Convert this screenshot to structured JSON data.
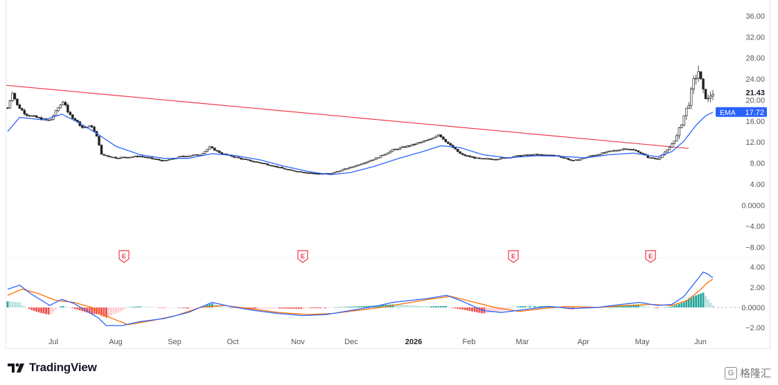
{
  "chart_data": {
    "type": "candlestick",
    "title": "",
    "price_axis": {
      "range": [
        -8,
        36
      ],
      "ticks": [
        "36.00",
        "32.00",
        "28.00",
        "24.00",
        "20.00",
        "16.00",
        "12.00",
        "8.00",
        "4.00",
        "0.0000",
        "−4.00",
        "−8.00"
      ],
      "last_price": "21.43",
      "ema_label": "EMA",
      "ema_value": "17.72"
    },
    "macd_axis": {
      "range": [
        -2.6,
        4.6
      ],
      "ticks": [
        "4.00",
        "2.00",
        "0.0000",
        "−2.00"
      ]
    },
    "x_axis": {
      "labels": [
        "Jul",
        "Aug",
        "Sep",
        "Oct",
        "Nov",
        "Dec",
        "2026",
        "Feb",
        "Mar",
        "Apr",
        "May",
        "Jun"
      ],
      "bold_labels": [
        "2026"
      ]
    },
    "earnings_markers": [
      "E",
      "E",
      "E",
      "E"
    ],
    "trendline": {
      "start_price": 22.8,
      "end_price": 10.8
    },
    "price_anchors": [
      [
        0,
        18.5
      ],
      [
        4,
        21.5
      ],
      [
        8,
        19.0
      ],
      [
        15,
        17.3
      ],
      [
        25,
        16.6
      ],
      [
        35,
        16.0
      ],
      [
        42,
        18.5
      ],
      [
        47,
        20.0
      ],
      [
        50,
        17.5
      ],
      [
        56,
        16.3
      ],
      [
        62,
        14.8
      ],
      [
        70,
        15.0
      ],
      [
        75,
        12.5
      ],
      [
        78,
        9.6
      ],
      [
        90,
        9.0
      ],
      [
        110,
        9.3
      ],
      [
        130,
        8.4
      ],
      [
        145,
        9.3
      ],
      [
        160,
        9.6
      ],
      [
        168,
        11.0
      ],
      [
        178,
        9.8
      ],
      [
        198,
        8.6
      ],
      [
        215,
        7.8
      ],
      [
        235,
        6.6
      ],
      [
        255,
        6.0
      ],
      [
        268,
        6.0
      ],
      [
        285,
        7.2
      ],
      [
        305,
        8.8
      ],
      [
        320,
        10.5
      ],
      [
        335,
        11.4
      ],
      [
        350,
        12.4
      ],
      [
        358,
        13.5
      ],
      [
        367,
        11.5
      ],
      [
        377,
        9.6
      ],
      [
        392,
        8.8
      ],
      [
        407,
        8.8
      ],
      [
        425,
        9.4
      ],
      [
        440,
        9.6
      ],
      [
        457,
        9.4
      ],
      [
        470,
        8.4
      ],
      [
        485,
        9.4
      ],
      [
        500,
        10.2
      ],
      [
        514,
        10.8
      ],
      [
        524,
        10.2
      ],
      [
        533,
        9.0
      ],
      [
        540,
        8.8
      ],
      [
        548,
        10.4
      ],
      [
        556,
        13.0
      ],
      [
        562,
        17.0
      ],
      [
        566,
        19.5
      ],
      [
        570,
        23.5
      ],
      [
        574,
        25.5
      ],
      [
        578,
        21.5
      ],
      [
        582,
        20.0
      ],
      [
        585,
        21.4
      ]
    ],
    "ema": [
      [
        0,
        14.0
      ],
      [
        10,
        16.7
      ],
      [
        30,
        16.2
      ],
      [
        45,
        17.3
      ],
      [
        60,
        15.6
      ],
      [
        75,
        13.5
      ],
      [
        90,
        11.2
      ],
      [
        110,
        9.6
      ],
      [
        130,
        8.9
      ],
      [
        150,
        8.9
      ],
      [
        170,
        9.8
      ],
      [
        190,
        9.4
      ],
      [
        210,
        8.6
      ],
      [
        230,
        7.4
      ],
      [
        250,
        6.4
      ],
      [
        268,
        5.8
      ],
      [
        285,
        6.2
      ],
      [
        305,
        7.4
      ],
      [
        325,
        8.9
      ],
      [
        345,
        10.2
      ],
      [
        360,
        11.3
      ],
      [
        375,
        11.0
      ],
      [
        395,
        9.6
      ],
      [
        415,
        9.0
      ],
      [
        440,
        9.4
      ],
      [
        460,
        9.3
      ],
      [
        480,
        9.0
      ],
      [
        500,
        9.6
      ],
      [
        520,
        9.9
      ],
      [
        540,
        9.2
      ],
      [
        552,
        10.2
      ],
      [
        562,
        12.2
      ],
      [
        572,
        15.2
      ],
      [
        580,
        17.0
      ],
      [
        586,
        17.7
      ]
    ],
    "macd_line": [
      [
        0,
        1.8
      ],
      [
        10,
        2.2
      ],
      [
        20,
        1.3
      ],
      [
        35,
        0.2
      ],
      [
        45,
        0.8
      ],
      [
        55,
        0.4
      ],
      [
        65,
        -0.3
      ],
      [
        75,
        -1.0
      ],
      [
        82,
        -1.8
      ],
      [
        95,
        -1.8
      ],
      [
        110,
        -1.4
      ],
      [
        130,
        -1.1
      ],
      [
        150,
        -0.5
      ],
      [
        170,
        0.5
      ],
      [
        185,
        0.1
      ],
      [
        205,
        -0.3
      ],
      [
        225,
        -0.6
      ],
      [
        245,
        -0.8
      ],
      [
        265,
        -0.7
      ],
      [
        285,
        -0.3
      ],
      [
        305,
        0.1
      ],
      [
        320,
        0.5
      ],
      [
        335,
        0.7
      ],
      [
        350,
        0.9
      ],
      [
        365,
        1.2
      ],
      [
        378,
        0.6
      ],
      [
        395,
        -0.3
      ],
      [
        410,
        -0.5
      ],
      [
        430,
        -0.2
      ],
      [
        450,
        0.1
      ],
      [
        470,
        -0.1
      ],
      [
        490,
        0.0
      ],
      [
        510,
        0.3
      ],
      [
        525,
        0.5
      ],
      [
        540,
        0.2
      ],
      [
        552,
        0.3
      ],
      [
        562,
        1.1
      ],
      [
        572,
        2.6
      ],
      [
        578,
        3.5
      ],
      [
        582,
        3.3
      ],
      [
        585,
        3.0
      ]
    ],
    "signal_line": [
      [
        0,
        1.2
      ],
      [
        12,
        1.8
      ],
      [
        25,
        1.4
      ],
      [
        40,
        0.7
      ],
      [
        55,
        0.5
      ],
      [
        70,
        0.0
      ],
      [
        85,
        -1.0
      ],
      [
        100,
        -1.7
      ],
      [
        120,
        -1.3
      ],
      [
        140,
        -0.8
      ],
      [
        160,
        0.0
      ],
      [
        180,
        0.2
      ],
      [
        200,
        -0.1
      ],
      [
        225,
        -0.5
      ],
      [
        250,
        -0.7
      ],
      [
        270,
        -0.6
      ],
      [
        290,
        -0.3
      ],
      [
        310,
        0.0
      ],
      [
        330,
        0.4
      ],
      [
        350,
        0.8
      ],
      [
        368,
        1.1
      ],
      [
        385,
        0.6
      ],
      [
        405,
        0.0
      ],
      [
        425,
        -0.4
      ],
      [
        445,
        -0.1
      ],
      [
        465,
        0.1
      ],
      [
        490,
        0.0
      ],
      [
        515,
        0.2
      ],
      [
        535,
        0.3
      ],
      [
        552,
        0.2
      ],
      [
        565,
        0.7
      ],
      [
        575,
        1.7
      ],
      [
        582,
        2.5
      ],
      [
        586,
        2.8
      ]
    ],
    "series_colors": {
      "trendline": "#f23645",
      "ema": "#2962ff",
      "macd": "#2962ff",
      "signal": "#ff6d00",
      "hist_up": "#26a69a",
      "hist_down": "#ef5350",
      "hist_up_light": "#b2dfdb",
      "hist_down_light": "#ffcdd2"
    }
  },
  "footer": {
    "brand": "TradingView",
    "watermark": "格隆汇"
  }
}
